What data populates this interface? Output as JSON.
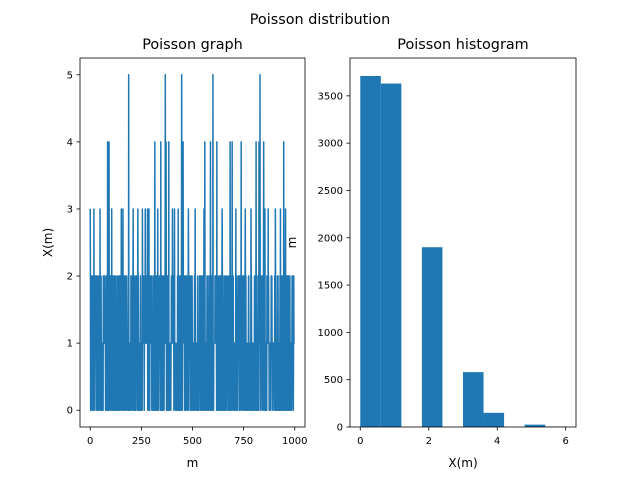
{
  "figure": {
    "suptitle": "Poisson distribution"
  },
  "chart_data": [
    {
      "type": "line",
      "title": "Poisson graph",
      "xlabel": "m",
      "ylabel": "X(m)",
      "xlim": [
        -50,
        1050
      ],
      "ylim": [
        -0.25,
        5.25
      ],
      "xticks": [
        0,
        250,
        500,
        750,
        1000
      ],
      "xtick_labels": [
        "0",
        "250",
        "500",
        "750",
        "1000"
      ],
      "yticks": [
        0,
        1,
        2,
        3,
        4,
        5
      ],
      "ytick_labels": [
        "0",
        "1",
        "2",
        "3",
        "4",
        "5"
      ],
      "grid": false,
      "color": "#1f77b4",
      "series": [
        {
          "x_start": 0,
          "x_end": 1000,
          "peaks": [
            {
              "x": 188,
              "y": 5
            },
            {
              "x": 367,
              "y": 5
            },
            {
              "x": 447,
              "y": 5
            },
            {
              "x": 600,
              "y": 5
            },
            {
              "x": 830,
              "y": 5
            },
            {
              "x": 85,
              "y": 4
            },
            {
              "x": 92,
              "y": 4
            },
            {
              "x": 316,
              "y": 4
            },
            {
              "x": 345,
              "y": 4
            },
            {
              "x": 371,
              "y": 4
            },
            {
              "x": 384,
              "y": 4
            },
            {
              "x": 454,
              "y": 4
            },
            {
              "x": 560,
              "y": 4
            },
            {
              "x": 588,
              "y": 4
            },
            {
              "x": 619,
              "y": 4
            },
            {
              "x": 684,
              "y": 4
            },
            {
              "x": 694,
              "y": 4
            },
            {
              "x": 738,
              "y": 4
            },
            {
              "x": 811,
              "y": 4
            },
            {
              "x": 825,
              "y": 4
            },
            {
              "x": 848,
              "y": 4
            },
            {
              "x": 946,
              "y": 4
            }
          ],
          "threes": [
            0,
            18,
            48,
            105,
            152,
            160,
            210,
            233,
            255,
            269,
            280,
            287,
            330,
            402,
            412,
            430,
            480,
            513,
            556,
            645,
            712,
            758,
            786,
            854,
            870,
            905,
            930,
            955
          ]
        }
      ]
    },
    {
      "type": "bar",
      "title": "Poisson histogram",
      "xlabel": "X(m)",
      "ylabel": "m",
      "xlim": [
        -0.3,
        6.3
      ],
      "ylim": [
        0,
        3900
      ],
      "xticks": [
        0,
        2,
        4,
        6
      ],
      "xtick_labels": [
        "0",
        "2",
        "4",
        "6"
      ],
      "yticks": [
        0,
        500,
        1000,
        1500,
        2000,
        2500,
        3000,
        3500
      ],
      "ytick_labels": [
        "0",
        "500",
        "1000",
        "1500",
        "2000",
        "2500",
        "3000",
        "3500"
      ],
      "grid": false,
      "color": "#1f77b4",
      "bins": [
        {
          "x0": 0.0,
          "x1": 0.6,
          "value": 3710
        },
        {
          "x0": 0.6,
          "x1": 1.2,
          "value": 3630
        },
        {
          "x0": 1.2,
          "x1": 1.8,
          "value": 0
        },
        {
          "x0": 1.8,
          "x1": 2.4,
          "value": 1900
        },
        {
          "x0": 2.4,
          "x1": 3.0,
          "value": 0
        },
        {
          "x0": 3.0,
          "x1": 3.6,
          "value": 580
        },
        {
          "x0": 3.6,
          "x1": 4.2,
          "value": 150
        },
        {
          "x0": 4.2,
          "x1": 4.8,
          "value": 0
        },
        {
          "x0": 4.8,
          "x1": 5.4,
          "value": 25
        },
        {
          "x0": 5.4,
          "x1": 6.0,
          "value": 5
        }
      ]
    }
  ]
}
